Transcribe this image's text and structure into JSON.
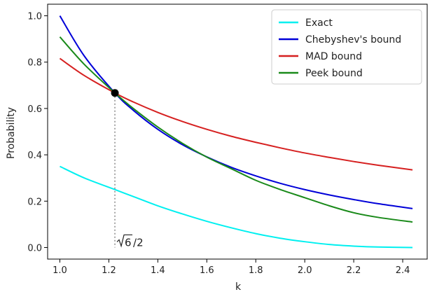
{
  "chart_data": {
    "type": "line",
    "xlabel": "k",
    "ylabel": "Probability",
    "xlim": [
      0.95,
      2.5
    ],
    "ylim": [
      -0.05,
      1.05
    ],
    "xticks": [
      "1.0",
      "1.2",
      "1.4",
      "1.6",
      "1.8",
      "2.0",
      "2.2",
      "2.4"
    ],
    "yticks": [
      "0.0",
      "0.2",
      "0.4",
      "0.6",
      "0.8",
      "1.0"
    ],
    "legend_position": "top-right",
    "x": [
      1.0,
      1.1,
      1.2247,
      1.3,
      1.4,
      1.5,
      1.6,
      1.7,
      1.8,
      1.9,
      2.0,
      2.1,
      2.2,
      2.3,
      2.44
    ],
    "series": [
      {
        "name": "Exact",
        "color": "#00f0f0",
        "values": [
          0.35,
          0.3,
          0.25,
          0.22,
          0.18,
          0.145,
          0.113,
          0.085,
          0.06,
          0.04,
          0.025,
          0.013,
          0.006,
          0.002,
          0.0
        ]
      },
      {
        "name": "Chebyshev's bound",
        "color": "#0000d8",
        "values": [
          1.0,
          0.826,
          0.667,
          0.592,
          0.51,
          0.444,
          0.391,
          0.346,
          0.309,
          0.277,
          0.25,
          0.227,
          0.207,
          0.189,
          0.168
        ]
      },
      {
        "name": "MAD bound",
        "color": "#d62020",
        "values": [
          0.816,
          0.742,
          0.667,
          0.628,
          0.583,
          0.544,
          0.51,
          0.48,
          0.454,
          0.43,
          0.408,
          0.389,
          0.371,
          0.355,
          0.335
        ]
      },
      {
        "name": "Peek bound",
        "color": "#1a8a1a",
        "values": [
          0.909,
          0.79,
          0.667,
          0.6,
          0.52,
          0.45,
          0.39,
          0.34,
          0.29,
          0.25,
          0.215,
          0.18,
          0.15,
          0.13,
          0.11
        ]
      }
    ],
    "marker": {
      "x": 1.2247,
      "y": 0.667,
      "color": "#000000"
    },
    "annotation": {
      "x": 1.2247,
      "text_radicand": "6",
      "text_suffix": "/2"
    }
  }
}
